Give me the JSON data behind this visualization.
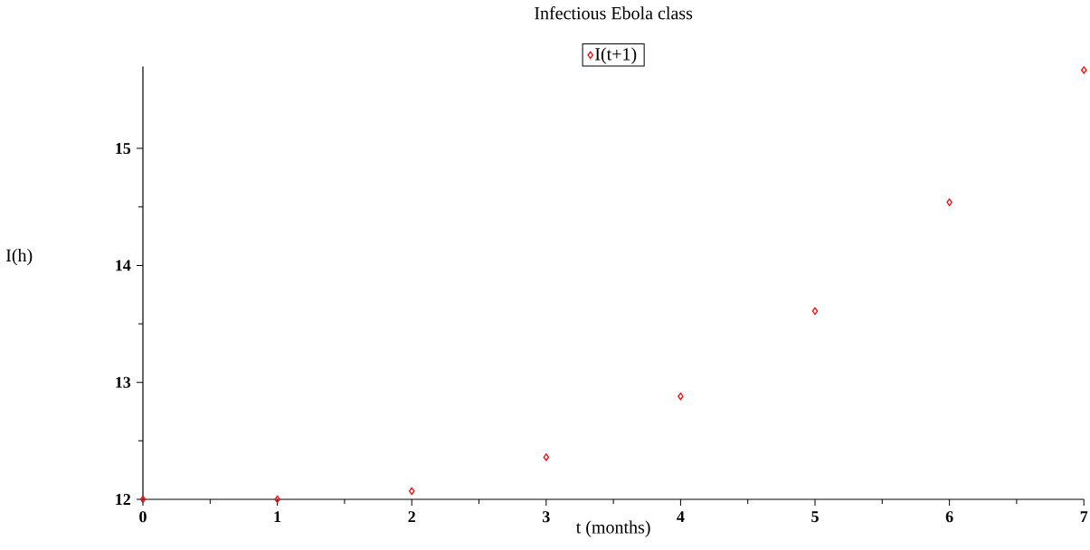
{
  "chart_data": {
    "type": "scatter",
    "title": "Infectious Ebola class",
    "xlabel": "t (months)",
    "ylabel": "I(h)",
    "x": [
      0,
      1,
      2,
      3,
      4,
      5,
      6,
      7
    ],
    "series": [
      {
        "name": "I(t+1)",
        "color": "#ff0000",
        "values": [
          12.0,
          12.0,
          12.07,
          12.36,
          12.88,
          13.61,
          14.54,
          15.67
        ]
      }
    ],
    "xlim": [
      0,
      7
    ],
    "ylim": [
      12,
      15.7
    ],
    "xticks": [
      0,
      1,
      2,
      3,
      4,
      5,
      6,
      7
    ],
    "yticks": [
      12,
      13,
      14,
      15
    ],
    "marker": "diamond",
    "legend": "top",
    "grid": false
  }
}
